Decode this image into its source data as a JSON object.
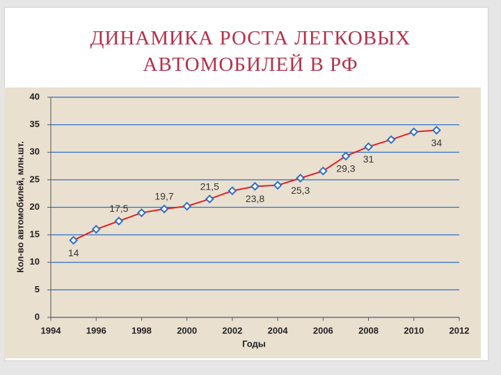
{
  "chart_data": {
    "type": "line",
    "title": "ДИНАМИКА РОСТА ЛЕГКОВЫХ АВТОМОБИЛЕЙ В РФ",
    "x_label": "Годы",
    "y_label": "Кол-во автомобилей, млн.шт.",
    "x": [
      1995,
      1996,
      1997,
      1998,
      1999,
      2000,
      2001,
      2002,
      2003,
      2004,
      2005,
      2006,
      2007,
      2008,
      2009,
      2010,
      2011
    ],
    "series": [
      {
        "name": "Кол-во автомобилей",
        "color": "#e02020",
        "marker_color": "#2a6fc9",
        "values": [
          14,
          16,
          17.5,
          19,
          19.7,
          20.2,
          21.5,
          23,
          23.8,
          24,
          25.3,
          26.6,
          29.3,
          31,
          32.3,
          33.7,
          34
        ],
        "value_labels": [
          "14",
          null,
          "17,5",
          null,
          "19,7",
          null,
          "21,5",
          null,
          "23,8",
          null,
          "25,3",
          null,
          "29,3",
          "31",
          null,
          null,
          "34"
        ]
      }
    ],
    "xlim": [
      1994,
      2012
    ],
    "xticks": [
      1994,
      1996,
      1998,
      2000,
      2002,
      2004,
      2006,
      2008,
      2010,
      2012
    ],
    "ylim": [
      0,
      40
    ],
    "yticks": [
      0,
      5,
      10,
      15,
      20,
      25,
      30,
      35,
      40
    ],
    "grid": true,
    "grid_color": "#2a6fc9"
  }
}
